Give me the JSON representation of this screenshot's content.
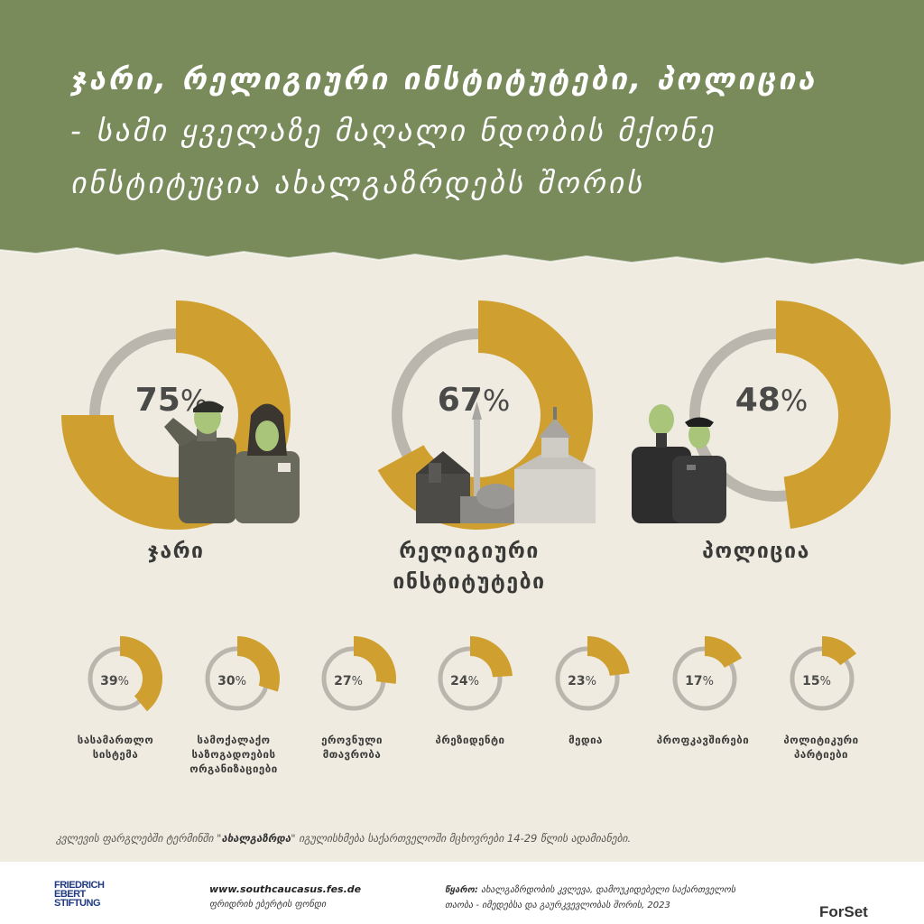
{
  "header": {
    "title_line1": "ჯარი, რელიგიური ინსტიტუტები, პოლიცია",
    "title_line2": "- სამი ყველაზე მაღალი ნდობის მქონე",
    "title_line3": "ინსტიტუცია ახალგაზრდებს შორის"
  },
  "colors": {
    "header_bg": "#798a5b",
    "accent": "#cfa02f",
    "track": "#bab6ad",
    "background": "#efebe1"
  },
  "chart_data": {
    "type": "donut",
    "percent_symbol": "%",
    "main": [
      {
        "label_line1": "ჯარი",
        "label_line2": "",
        "value": 75,
        "illustration": "soldiers-image"
      },
      {
        "label_line1": "რელიგიური",
        "label_line2": "ინსტიტუტები",
        "value": 67,
        "illustration": "churches-image"
      },
      {
        "label_line1": "პოლიცია",
        "label_line2": "",
        "value": 48,
        "illustration": "police-officers-image"
      }
    ],
    "secondary": [
      {
        "label_line1": "სასამართლო",
        "label_line2": "სისტემა",
        "label_line3": "",
        "value": 39
      },
      {
        "label_line1": "სამოქალაქო",
        "label_line2": "საზოგადოების",
        "label_line3": "ორგანიზაციები",
        "value": 30
      },
      {
        "label_line1": "ეროვნული",
        "label_line2": "მთავრობა",
        "label_line3": "",
        "value": 27
      },
      {
        "label_line1": "პრეზიდენტი",
        "label_line2": "",
        "label_line3": "",
        "value": 24
      },
      {
        "label_line1": "მედია",
        "label_line2": "",
        "label_line3": "",
        "value": 23
      },
      {
        "label_line1": "პროფკავშირები",
        "label_line2": "",
        "label_line3": "",
        "value": 17
      },
      {
        "label_line1": "პოლიტიკური",
        "label_line2": "პარტიები",
        "label_line3": "",
        "value": 15
      }
    ]
  },
  "footnote": {
    "before": "კვლევის ფარგლებში ტერმინში \"",
    "term": "ახალგაზრდა",
    "after": "\" იგულისხმება საქართველოში მცხოვრები 14-29 წლის ადამიანები."
  },
  "footer": {
    "logo_fes_line1": "FRIEDRICH",
    "logo_fes_line2": "EBERT",
    "logo_fes_line3": "STIFTUNG",
    "website": "www.southcaucasus.fes.de",
    "org_name": "ფრიდრიხ ებერტის ფონდი",
    "source_label": "წყარო:",
    "source_text": "ახალგაზრდობის კვლევა, დამოუკიდებელი საქართველოს თაობა - იმედებსა და გაურკვევლობას შორის, 2023",
    "logo_forset": "ForSet"
  }
}
